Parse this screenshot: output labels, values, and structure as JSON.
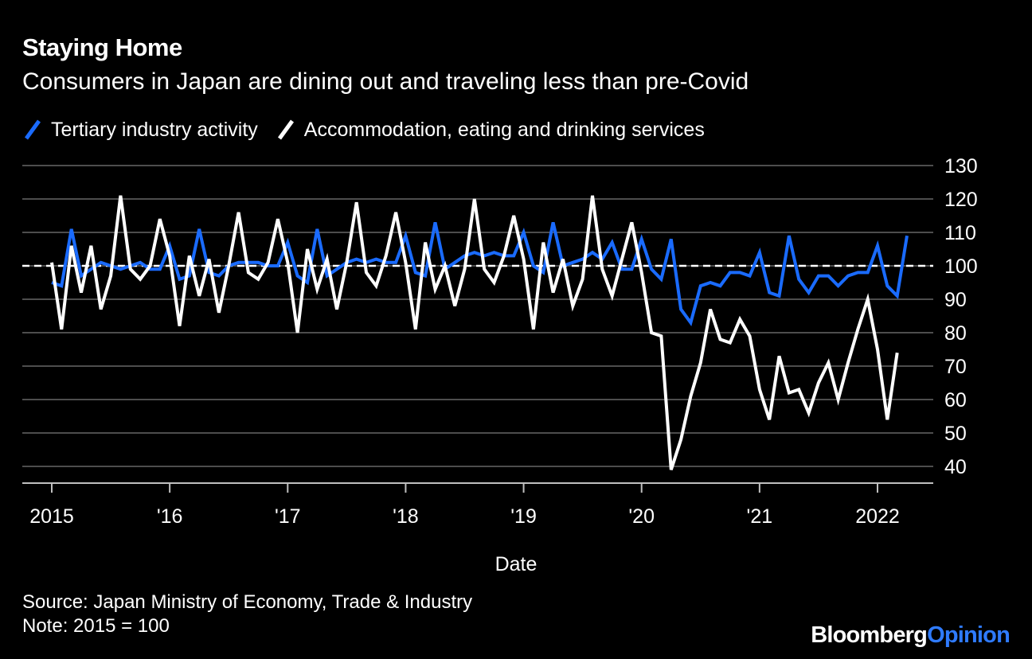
{
  "header": {
    "title": "Staying Home",
    "subtitle": "Consumers in Japan are dining out and traveling less than pre-Covid"
  },
  "legend": [
    {
      "label": "Tertiary industry activity",
      "color": "#1a6bff"
    },
    {
      "label": "Accommodation, eating and drinking services",
      "color": "#ffffff"
    }
  ],
  "footer": {
    "source": "Source: Japan Ministry of Economy, Trade & Industry",
    "note": "Note: 2015 = 100"
  },
  "brand": {
    "part1": "Bloomberg",
    "part2": "Opinion",
    "accent": "#2f7bff"
  },
  "chart_data": {
    "type": "line",
    "title": "Staying Home",
    "xlabel": "Date",
    "ylabel": "",
    "ylim": [
      35,
      130
    ],
    "yticks": [
      40,
      50,
      60,
      70,
      80,
      90,
      100,
      110,
      120,
      130
    ],
    "xlim_month_index": [
      -1,
      88
    ],
    "xticks": [
      {
        "index": 0,
        "label": "2015"
      },
      {
        "index": 12,
        "label": "'16"
      },
      {
        "index": 24,
        "label": "'17"
      },
      {
        "index": 36,
        "label": "'18"
      },
      {
        "index": 48,
        "label": "'19"
      },
      {
        "index": 60,
        "label": "'20"
      },
      {
        "index": 72,
        "label": "'21"
      },
      {
        "index": 84,
        "label": "2022"
      }
    ],
    "reference_line": 100,
    "grid": true,
    "series": [
      {
        "name": "Tertiary industry activity",
        "color": "#1a6bff",
        "start": "2015-01",
        "values": [
          95,
          94,
          111,
          97,
          99,
          101,
          100,
          99,
          100,
          101,
          99,
          99,
          106,
          96,
          97,
          111,
          98,
          97,
          100,
          101,
          101,
          101,
          100,
          100,
          107,
          97,
          95,
          111,
          97,
          99,
          101,
          102,
          101,
          102,
          101,
          101,
          109,
          98,
          97,
          113,
          99,
          101,
          103,
          104,
          103,
          104,
          103,
          103,
          110,
          100,
          98,
          113,
          100,
          101,
          102,
          104,
          102,
          107,
          99,
          99,
          108,
          99,
          96,
          108,
          87,
          83,
          94,
          95,
          94,
          98,
          98,
          97,
          104,
          92,
          91,
          109,
          96,
          92,
          97,
          97,
          94,
          97,
          98,
          98,
          106,
          94,
          91,
          109
        ]
      },
      {
        "name": "Accommodation, eating and drinking services",
        "color": "#ffffff",
        "start": "2015-01",
        "values": [
          101,
          81,
          106,
          92,
          106,
          87,
          97,
          121,
          99,
          96,
          100,
          114,
          103,
          82,
          103,
          91,
          102,
          86,
          100,
          116,
          98,
          96,
          101,
          114,
          101,
          80,
          105,
          93,
          102,
          87,
          101,
          119,
          98,
          94,
          103,
          116,
          101,
          81,
          107,
          93,
          100,
          88,
          99,
          120,
          99,
          95,
          103,
          115,
          102,
          81,
          107,
          92,
          102,
          88,
          96,
          121,
          99,
          91,
          102,
          113,
          98,
          80,
          79,
          39,
          48,
          61,
          71,
          87,
          78,
          77,
          84,
          79,
          63,
          54,
          73,
          62,
          63,
          56,
          65,
          71,
          60,
          71,
          81,
          90,
          75,
          54,
          74
        ]
      }
    ]
  }
}
